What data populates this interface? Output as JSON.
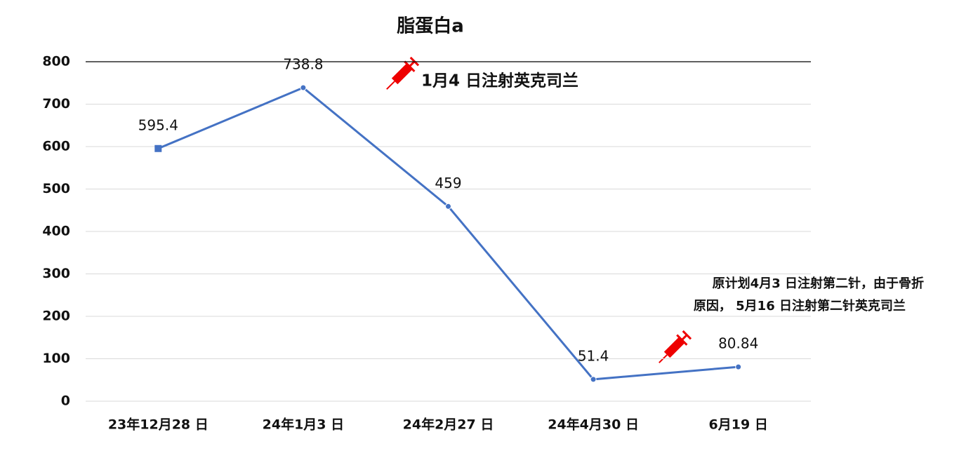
{
  "chart_data": {
    "type": "line",
    "title": "脂蛋白a",
    "categories": [
      "23年12月28 日",
      "24年1月3 日",
      "24年2月27 日",
      "24年4月30 日",
      "6月19 日"
    ],
    "values": [
      595.4,
      738.8,
      459,
      51.4,
      80.84
    ],
    "color": "#4472c4",
    "ylim": [
      0,
      800
    ],
    "yticks": [
      0,
      100,
      200,
      300,
      400,
      500,
      600,
      700,
      800
    ],
    "grid": true,
    "annotations": [
      "1月4 日注射英克司兰",
      "原计划4月3 日注射第二针，由于骨折",
      "原因， 5月16 日注射第二针英克司兰"
    ]
  }
}
